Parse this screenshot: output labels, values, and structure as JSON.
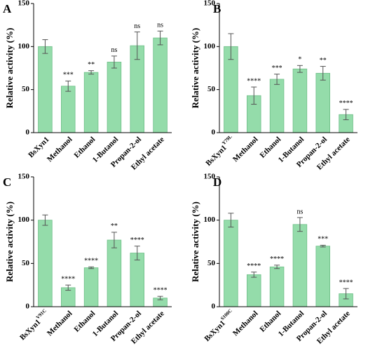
{
  "chart_data": [
    {
      "type": "bar",
      "panel_label": "A",
      "y_label": "Relative activity (%)",
      "categories": [
        "BsXyn1",
        "Methanol",
        "Ethanol",
        "1-Butanol",
        "Propan-2-ol",
        "Ethyl acetate"
      ],
      "values": [
        100,
        54,
        70,
        82,
        101,
        110
      ],
      "errors": [
        8,
        6,
        2,
        7,
        16,
        8
      ],
      "annotations": [
        null,
        "***",
        "**",
        "ns",
        "ns",
        "ns"
      ],
      "color": "#94dcaa",
      "ylim": [
        0,
        150
      ],
      "yticks": [
        0,
        50,
        100,
        150
      ]
    },
    {
      "type": "bar",
      "panel_label": "B",
      "y_label": "Relative activity (%)",
      "categories": [
        "BsXyn1",
        "Methanol",
        "Ethanol",
        "1-Butanol",
        "Propan-2-ol",
        "Ethyl acetate"
      ],
      "category_superscript": "Y79L",
      "values": [
        100,
        43,
        62,
        74,
        69,
        21
      ],
      "errors": [
        15,
        10,
        6,
        4,
        8,
        6
      ],
      "annotations": [
        null,
        "****",
        "***",
        "*",
        "**",
        "****"
      ],
      "color": "#94dcaa",
      "ylim": [
        0,
        150
      ],
      "yticks": [
        0,
        50,
        100,
        150
      ]
    },
    {
      "type": "bar",
      "panel_label": "C",
      "y_label": "Relative activity (%)",
      "categories": [
        "BsXyn1",
        "Methanol",
        "Ethanol",
        "1-Butanol",
        "Propan-2-ol",
        "Ethyl acetate"
      ],
      "category_superscript": "V91C",
      "values": [
        100,
        22,
        45,
        77,
        62,
        10
      ],
      "errors": [
        6,
        3,
        1,
        9,
        8,
        2
      ],
      "annotations": [
        null,
        "****",
        "****",
        "**",
        "****",
        "****"
      ],
      "color": "#94dcaa",
      "ylim": [
        0,
        150
      ],
      "yticks": [
        0,
        50,
        100,
        150
      ]
    },
    {
      "type": "bar",
      "panel_label": "D",
      "y_label": "Relative activity (%)",
      "categories": [
        "BsXyn1",
        "Methanol",
        "Ethanol",
        "1-Butanol",
        "Propan-2-ol",
        "Ethyl acetate"
      ],
      "category_superscript": "S100C",
      "values": [
        100,
        37,
        46,
        95,
        70,
        15
      ],
      "errors": [
        8,
        3,
        2,
        8,
        1,
        6
      ],
      "annotations": [
        null,
        "****",
        "****",
        "ns",
        "***",
        "****"
      ],
      "color": "#94dcaa",
      "ylim": [
        0,
        150
      ],
      "yticks": [
        0,
        50,
        100,
        150
      ]
    }
  ]
}
